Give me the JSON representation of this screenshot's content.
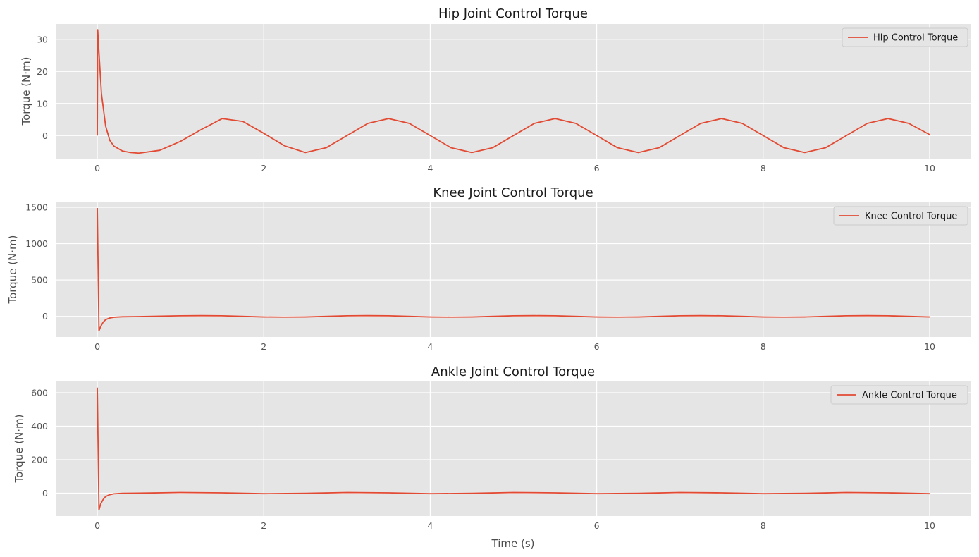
{
  "chart_data": [
    {
      "type": "line",
      "title": "Hip Joint Control Torque",
      "xlabel": "",
      "ylabel": "Torque (N·m)",
      "xlim": [
        -0.5,
        10.5
      ],
      "ylim": [
        -7.2,
        34.8
      ],
      "xticks": [
        0,
        2,
        4,
        6,
        8,
        10
      ],
      "yticks": [
        0,
        10,
        20,
        30
      ],
      "grid": true,
      "legend_position": "top-right",
      "series": [
        {
          "name": "Hip Control Torque",
          "color": "#E24A33",
          "x": [
            0,
            0.005,
            0.02,
            0.05,
            0.1,
            0.15,
            0.2,
            0.3,
            0.4,
            0.5,
            0.75,
            1.0,
            1.25,
            1.5,
            1.75,
            2.0,
            2.25,
            2.5,
            2.75,
            3.0,
            3.25,
            3.5,
            3.75,
            4.0,
            4.25,
            4.5,
            4.75,
            5.0,
            5.25,
            5.5,
            5.75,
            6.0,
            6.25,
            6.5,
            6.75,
            7.0,
            7.25,
            7.5,
            7.75,
            8.0,
            8.25,
            8.5,
            8.75,
            9.0,
            9.25,
            9.5,
            9.75,
            10.0
          ],
          "y": [
            0,
            33,
            26,
            13,
            3,
            -1.5,
            -3.3,
            -4.8,
            -5.3,
            -5.5,
            -4.6,
            -1.8,
            1.9,
            5.3,
            4.4,
            0.7,
            -3.2,
            -5.3,
            -3.8,
            0,
            3.8,
            5.3,
            3.8,
            0,
            -3.8,
            -5.3,
            -3.8,
            0,
            3.8,
            5.3,
            3.8,
            0,
            -3.8,
            -5.3,
            -3.8,
            0,
            3.8,
            5.3,
            3.8,
            0,
            -3.8,
            -5.3,
            -3.8,
            0,
            3.8,
            5.3,
            3.8,
            0.3
          ]
        }
      ]
    },
    {
      "type": "line",
      "title": "Knee Joint Control Torque",
      "xlabel": "",
      "ylabel": "Torque (N·m)",
      "xlim": [
        -0.5,
        10.5
      ],
      "ylim": [
        -284,
        1568
      ],
      "xticks": [
        0,
        2,
        4,
        6,
        8,
        10
      ],
      "yticks": [
        0,
        500,
        1000,
        1500
      ],
      "grid": true,
      "legend_position": "top-right",
      "series": [
        {
          "name": "Knee Control Torque",
          "color": "#E24A33",
          "x": [
            0,
            0.02,
            0.04,
            0.07,
            0.1,
            0.15,
            0.2,
            0.3,
            0.5,
            1.0,
            1.25,
            1.5,
            2.0,
            2.25,
            2.5,
            3.0,
            3.25,
            3.5,
            4.0,
            4.25,
            4.5,
            5.0,
            5.25,
            5.5,
            6.0,
            6.25,
            6.5,
            7.0,
            7.25,
            7.5,
            8.0,
            8.25,
            8.5,
            9.0,
            9.25,
            9.5,
            10.0
          ],
          "y": [
            1490,
            -200,
            -140,
            -80,
            -45,
            -22,
            -12,
            -6,
            -3,
            8,
            10,
            8,
            -8,
            -10,
            -8,
            8,
            10,
            8,
            -8,
            -10,
            -8,
            8,
            10,
            8,
            -8,
            -10,
            -8,
            8,
            10,
            8,
            -8,
            -10,
            -8,
            8,
            10,
            8,
            -8
          ]
        }
      ]
    },
    {
      "type": "line",
      "title": "Ankle Joint Control Torque",
      "xlabel": "Time (s)",
      "ylabel": "Torque (N·m)",
      "xlim": [
        -0.5,
        10.5
      ],
      "ylim": [
        -137,
        667
      ],
      "xticks": [
        0,
        2,
        4,
        6,
        8,
        10
      ],
      "yticks": [
        0,
        200,
        400,
        600
      ],
      "grid": true,
      "legend_position": "top-right",
      "series": [
        {
          "name": "Ankle Control Torque",
          "color": "#E24A33",
          "x": [
            0,
            0.02,
            0.04,
            0.07,
            0.1,
            0.15,
            0.2,
            0.3,
            0.5,
            1.0,
            1.5,
            2.0,
            2.5,
            3.0,
            3.5,
            4.0,
            4.5,
            5.0,
            5.5,
            6.0,
            6.5,
            7.0,
            7.5,
            8.0,
            8.5,
            9.0,
            9.5,
            10.0
          ],
          "y": [
            630,
            -100,
            -65,
            -38,
            -20,
            -9,
            -4,
            -1,
            0,
            4,
            2,
            -3,
            -1,
            4,
            2,
            -3,
            -1,
            4,
            2,
            -3,
            -1,
            4,
            2,
            -3,
            -1,
            4,
            2,
            -3
          ]
        }
      ]
    }
  ]
}
